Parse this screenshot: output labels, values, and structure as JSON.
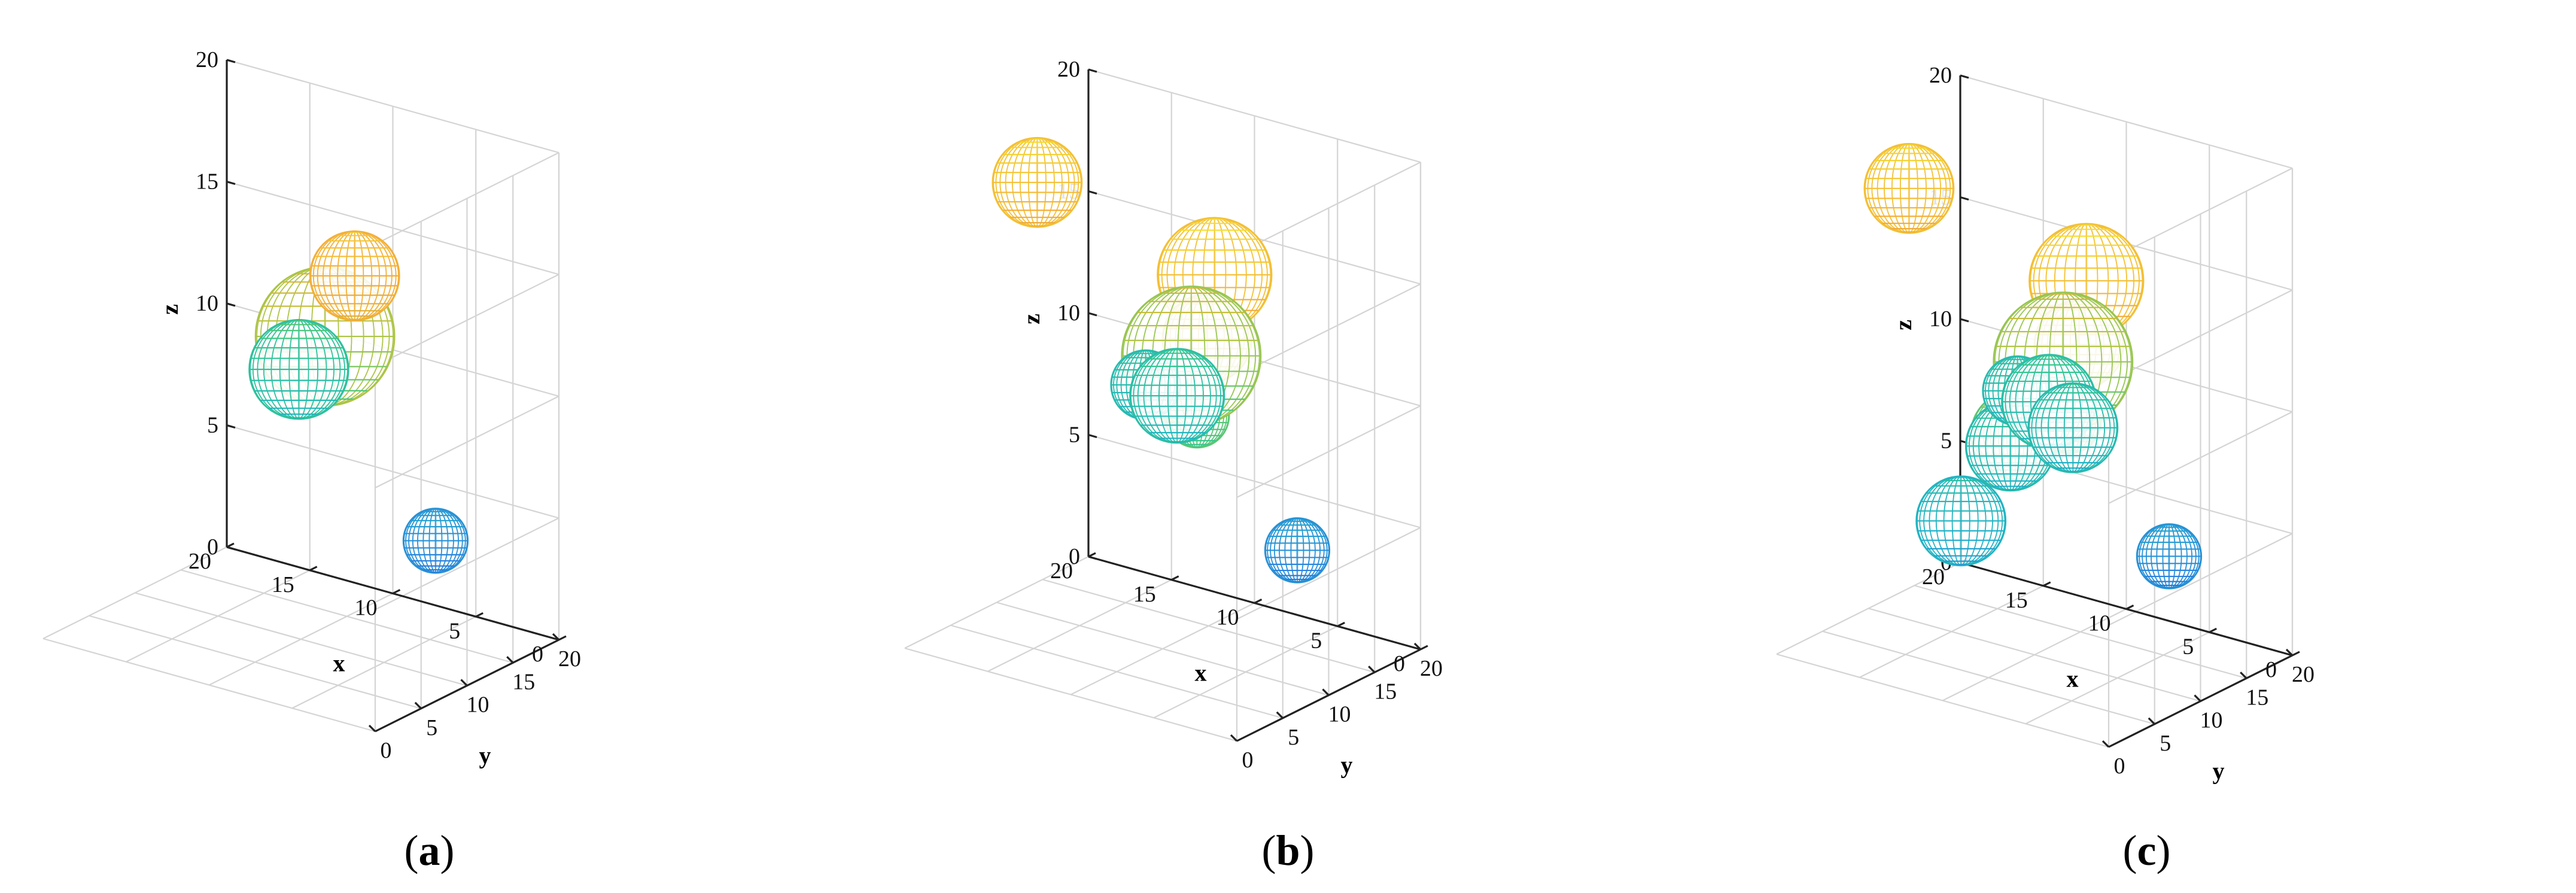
{
  "colors": {
    "grid": "#d4d4d4",
    "axis": "#222222",
    "colormap": [
      "#3e26a8",
      "#2f6fe3",
      "#1fb2c8",
      "#35c78a",
      "#b8c43c",
      "#f3a93a",
      "#f3e12a"
    ]
  },
  "chart_data": [
    {
      "type": "scatter3d",
      "caption": "(a)",
      "caption_letter": "a",
      "xlabel": "x",
      "ylabel": "y",
      "zlabel": "z",
      "xlim": [
        0,
        20
      ],
      "ylim": [
        0,
        20
      ],
      "zlim": [
        0,
        20
      ],
      "grid": true,
      "tick_labels": {
        "x": [
          "0",
          "5",
          "10",
          "15",
          "20"
        ],
        "y": [
          "0",
          "5",
          "10",
          "15",
          "20"
        ],
        "z": [
          "0",
          "5",
          "10",
          "15",
          "20"
        ]
      },
      "spheres": [
        {
          "x": 14,
          "y": 17,
          "z": 9,
          "r": 2.0
        },
        {
          "x": 8,
          "y": 9,
          "z": 13,
          "r": 2.8
        },
        {
          "x": 4,
          "y": 5,
          "z": 17,
          "r": 1.8
        },
        {
          "x": 3,
          "y": 12,
          "z": 5,
          "r": 1.3
        }
      ]
    },
    {
      "type": "scatter3d",
      "caption": "(b)",
      "caption_letter": "b",
      "xlabel": "x",
      "ylabel": "y",
      "zlabel": "z",
      "xlim": [
        0,
        20
      ],
      "ylim": [
        0,
        20
      ],
      "zlim": [
        0,
        20
      ],
      "grid": true,
      "tick_labels": {
        "x": [
          "0",
          "5",
          "10",
          "15",
          "20"
        ],
        "y": [
          "0",
          "5",
          "10",
          "15",
          "20"
        ],
        "z": [
          "0",
          "5",
          "10",
          "15",
          "20"
        ]
      },
      "spheres": [
        {
          "x": 16,
          "y": 19,
          "z": 8,
          "r": 1.4
        },
        {
          "x": 13,
          "y": 17,
          "z": 8.5,
          "r": 1.9
        },
        {
          "x": 17,
          "y": 9,
          "z": 18,
          "r": 1.8
        },
        {
          "x": 8,
          "y": 9.5,
          "z": 12.5,
          "r": 2.8
        },
        {
          "x": 6,
          "y": 6.5,
          "z": 11,
          "r": 1.3
        },
        {
          "x": 3,
          "y": 3,
          "z": 18,
          "r": 2.3
        },
        {
          "x": 4,
          "y": 4,
          "z": 15,
          "r": 1.8
        },
        {
          "x": 3,
          "y": 12,
          "z": 5,
          "r": 1.3
        }
      ]
    },
    {
      "type": "scatter3d",
      "caption": "(c)",
      "caption_letter": "c",
      "xlabel": "x",
      "ylabel": "y",
      "zlabel": "z",
      "xlim": [
        0,
        20
      ],
      "ylim": [
        0,
        20
      ],
      "zlim": [
        0,
        20
      ],
      "grid": true,
      "tick_labels": {
        "x": [
          "0",
          "5",
          "10",
          "15",
          "20"
        ],
        "y": [
          "0",
          "5",
          "10",
          "15",
          "20"
        ],
        "z": [
          "0",
          "5",
          "10",
          "15",
          "20"
        ]
      },
      "spheres": [
        {
          "x": 16,
          "y": 19,
          "z": 8,
          "r": 1.4
        },
        {
          "x": 13,
          "y": 17,
          "z": 8.5,
          "r": 1.9
        },
        {
          "x": 17,
          "y": 9,
          "z": 18,
          "r": 1.8
        },
        {
          "x": 3,
          "y": 3,
          "z": 18,
          "r": 2.3
        },
        {
          "x": 6,
          "y": 6.5,
          "z": 11,
          "r": 1.3
        },
        {
          "x": 4,
          "y": 4,
          "z": 15,
          "r": 1.8
        },
        {
          "x": 7,
          "y": 2.5,
          "z": 11,
          "r": 1.8
        },
        {
          "x": 3,
          "y": 12,
          "z": 5,
          "r": 1.3
        },
        {
          "x": 10,
          "y": 2,
          "z": 7,
          "r": 1.8
        },
        {
          "x": 8,
          "y": 9.5,
          "z": 12.5,
          "r": 2.8
        },
        {
          "x": 12,
          "y": 11,
          "z": 8,
          "r": 1.8
        },
        {
          "x": 11,
          "y": 16,
          "z": 8,
          "r": 1.8
        }
      ]
    }
  ]
}
